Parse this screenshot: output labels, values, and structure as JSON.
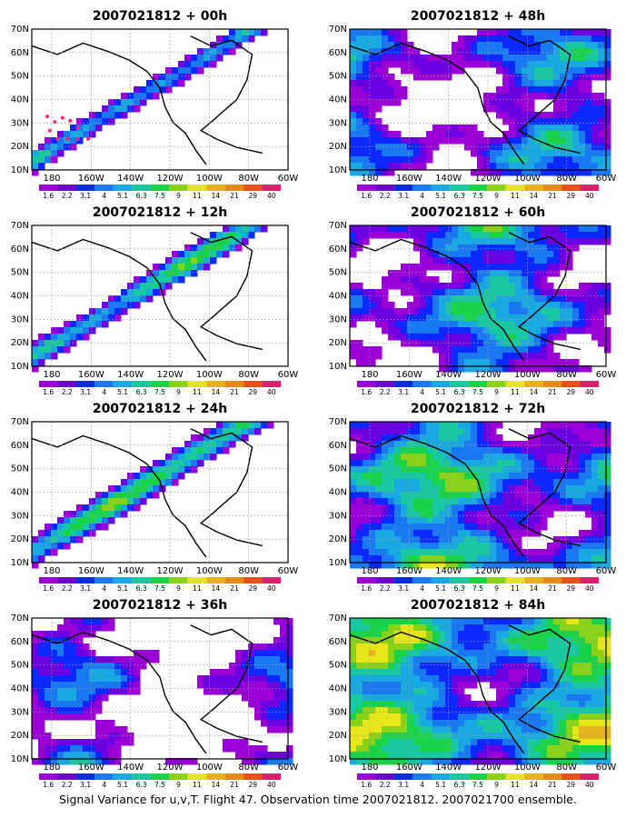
{
  "figure": {
    "caption": "Signal Variance for u,v,T. Flight 47. Observation time 2007021812. 2007021700 ensemble.",
    "colorbar": {
      "colors": [
        "#9a00d6",
        "#6b00e0",
        "#0a28ff",
        "#1a78f0",
        "#19a8e0",
        "#19c8a0",
        "#19d24a",
        "#8ad21a",
        "#e6e61a",
        "#e6b41a",
        "#e68a1a",
        "#e6501a",
        "#e61a6e"
      ],
      "labels": [
        "1.6",
        "2.2",
        "3.1",
        "4",
        "5.1",
        "6.3",
        "7.5",
        "9",
        "11",
        "14",
        "21",
        "29",
        "40"
      ]
    },
    "coastline_color": "#000000",
    "observation_marker_color": "#ff2080"
  },
  "chart_data": [
    {
      "type": "heatmap",
      "title": "2007021812 + 00h",
      "x_ticks": [
        "180",
        "160W",
        "140W",
        "120W",
        "100W",
        "80W",
        "60W"
      ],
      "y_ticks": [
        "10N",
        "20N",
        "30N",
        "40N",
        "50N",
        "60N",
        "70N"
      ],
      "xlim": [
        -190,
        -60
      ],
      "ylim": [
        10,
        70
      ],
      "grid": true,
      "lead_hours": 0
    },
    {
      "type": "heatmap",
      "title": "2007021812 + 12h",
      "x_ticks": [
        "180",
        "160W",
        "140W",
        "120W",
        "100W",
        "80W",
        "60W"
      ],
      "y_ticks": [
        "10N",
        "20N",
        "30N",
        "40N",
        "50N",
        "60N",
        "70N"
      ],
      "xlim": [
        -190,
        -60
      ],
      "ylim": [
        10,
        70
      ],
      "grid": true,
      "lead_hours": 12
    },
    {
      "type": "heatmap",
      "title": "2007021812 + 24h",
      "x_ticks": [
        "180",
        "160W",
        "140W",
        "120W",
        "100W",
        "80W",
        "60W"
      ],
      "y_ticks": [
        "10N",
        "20N",
        "30N",
        "40N",
        "50N",
        "60N",
        "70N"
      ],
      "xlim": [
        -190,
        -60
      ],
      "ylim": [
        10,
        70
      ],
      "grid": true,
      "lead_hours": 24
    },
    {
      "type": "heatmap",
      "title": "2007021812 + 36h",
      "x_ticks": [
        "180",
        "160W",
        "140W",
        "120W",
        "100W",
        "80W",
        "60W"
      ],
      "y_ticks": [
        "10N",
        "20N",
        "30N",
        "40N",
        "50N",
        "60N",
        "70N"
      ],
      "xlim": [
        -190,
        -60
      ],
      "ylim": [
        10,
        70
      ],
      "grid": true,
      "lead_hours": 36
    },
    {
      "type": "heatmap",
      "title": "2007021812 + 48h",
      "x_ticks": [
        "180",
        "160W",
        "140W",
        "120W",
        "100W",
        "80W",
        "60W"
      ],
      "y_ticks": [
        "10N",
        "20N",
        "30N",
        "40N",
        "50N",
        "60N",
        "70N"
      ],
      "xlim": [
        -190,
        -60
      ],
      "ylim": [
        10,
        70
      ],
      "grid": true,
      "lead_hours": 48
    },
    {
      "type": "heatmap",
      "title": "2007021812 + 60h",
      "x_ticks": [
        "180",
        "160W",
        "140W",
        "120W",
        "100W",
        "80W",
        "60W"
      ],
      "y_ticks": [
        "10N",
        "20N",
        "30N",
        "40N",
        "50N",
        "60N",
        "70N"
      ],
      "xlim": [
        -190,
        -60
      ],
      "ylim": [
        10,
        70
      ],
      "grid": true,
      "lead_hours": 60
    },
    {
      "type": "heatmap",
      "title": "2007021812 + 72h",
      "x_ticks": [
        "180",
        "160W",
        "140W",
        "120W",
        "100W",
        "80W",
        "60W"
      ],
      "y_ticks": [
        "10N",
        "20N",
        "30N",
        "40N",
        "50N",
        "60N",
        "70N"
      ],
      "xlim": [
        -190,
        -60
      ],
      "ylim": [
        10,
        70
      ],
      "grid": true,
      "lead_hours": 72
    },
    {
      "type": "heatmap",
      "title": "2007021812 + 84h",
      "x_ticks": [
        "180",
        "160W",
        "140W",
        "120W",
        "100W",
        "80W",
        "60W"
      ],
      "y_ticks": [
        "10N",
        "20N",
        "30N",
        "40N",
        "50N",
        "60N",
        "70N"
      ],
      "xlim": [
        -190,
        -60
      ],
      "ylim": [
        10,
        70
      ],
      "grid": true,
      "lead_hours": 84
    }
  ]
}
